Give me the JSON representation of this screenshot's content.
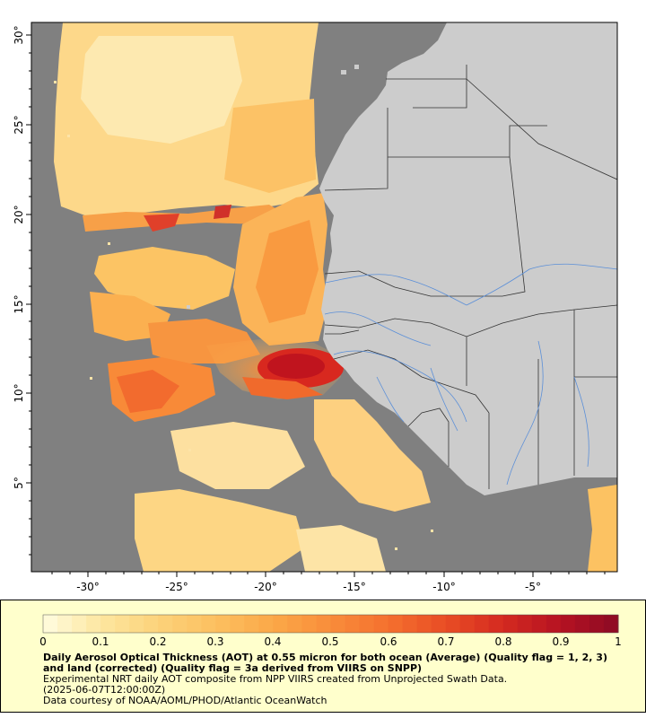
{
  "map": {
    "lon_ticks": [
      "-30°",
      "-25°",
      "-20°",
      "-15°",
      "-10°",
      "-5°"
    ],
    "lat_ticks": [
      "5°",
      "10°",
      "15°",
      "20°",
      "25°",
      "30°"
    ],
    "colors": {
      "missing": "#808080",
      "land": "#cccccc",
      "border": "#333333",
      "river": "#5b8fd8"
    }
  },
  "legend": {
    "tick_labels": [
      "0",
      "0.1",
      "0.2",
      "0.3",
      "0.4",
      "0.5",
      "0.6",
      "0.7",
      "0.8",
      "0.9",
      "1"
    ],
    "title": "Daily Aerosol Optical Thickness (AOT) at 0.55 micron for both ocean (Average) (Quality flag = 1, 2, 3) and land (corrected) (Quality flag = 3a derived from VIIRS on SNPP)",
    "line1": "Experimental NRT daily AOT composite from NPP VIIRS created from Unprojected Swath Data.",
    "line2": "(2025-06-07T12:00:00Z)",
    "line3": "Data courtesy of NOAA/AOML/PHOD/Atlantic OceanWatch",
    "colors": [
      "#fffde0",
      "#fde6a0",
      "#fcd27a",
      "#fcc060",
      "#fba848",
      "#f98c3a",
      "#f4702e",
      "#e84d25",
      "#d42a20",
      "#b51222",
      "#8c0a24"
    ]
  }
}
